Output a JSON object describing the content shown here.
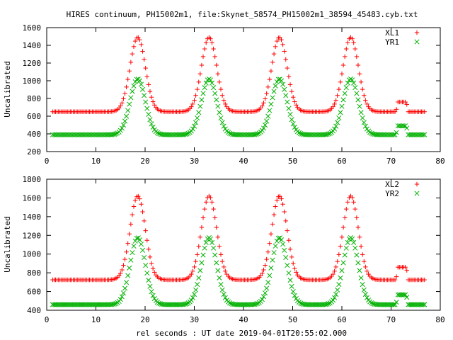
{
  "title": "HIRES continuum, PH15002m1, file:Skynet_58574_PH15002m1_38594_45483.cyb.txt",
  "xlabel": "rel seconds : UT date 2019-04-01T20:55:02.000",
  "colors": {
    "red": "#ff0000",
    "green": "#00b000"
  },
  "chart_data": [
    {
      "type": "scatter",
      "ylabel": "Uncalibrated",
      "xlim": [
        0,
        80
      ],
      "ylim": [
        200,
        1600
      ],
      "xticks": [
        0,
        10,
        20,
        30,
        40,
        50,
        60,
        70,
        80
      ],
      "yticks": [
        200,
        400,
        600,
        800,
        1000,
        1200,
        1400,
        1600
      ],
      "legend_position": "top-right",
      "series": [
        {
          "name": "XL1",
          "marker": "plus",
          "color": "#ff0000",
          "baseline": 650,
          "peak": 1490,
          "plateau": 760
        },
        {
          "name": "YR1",
          "marker": "cross",
          "color": "#00b000",
          "baseline": 390,
          "peak": 1020,
          "plateau": 490
        }
      ]
    },
    {
      "type": "scatter",
      "ylabel": "Uncalibrated",
      "xlim": [
        0,
        80
      ],
      "ylim": [
        400,
        1800
      ],
      "xticks": [
        0,
        10,
        20,
        30,
        40,
        50,
        60,
        70,
        80
      ],
      "yticks": [
        400,
        600,
        800,
        1000,
        1200,
        1400,
        1600,
        1800
      ],
      "legend_position": "top-right",
      "series": [
        {
          "name": "XL2",
          "marker": "plus",
          "color": "#ff0000",
          "baseline": 725,
          "peak": 1620,
          "plateau": 860
        },
        {
          "name": "YR2",
          "marker": "cross",
          "color": "#00b000",
          "baseline": 460,
          "peak": 1175,
          "plateau": 565
        }
      ]
    }
  ],
  "shared_data": {
    "x_start": 1.2,
    "x_end": 77.0,
    "x_step": 0.3,
    "peak_centers": [
      18.5,
      33.0,
      47.3,
      61.8
    ],
    "plateau_range": [
      71.0,
      73.5
    ]
  }
}
